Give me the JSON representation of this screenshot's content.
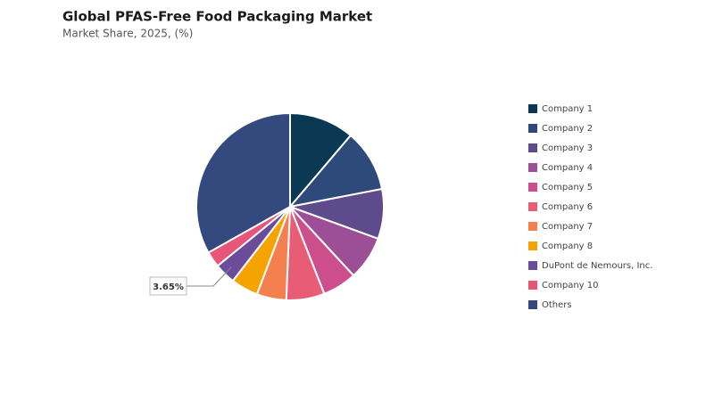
{
  "chart_data": {
    "type": "pie",
    "title": "Global PFAS-Free Food Packaging Market",
    "subtitle": "Market Share, 2025, (%)",
    "categories": [
      "Company 1",
      "Company 2",
      "Company 3",
      "Company 4",
      "Company 5",
      "Company 6",
      "Company 7",
      "Company 8",
      "DuPont de Nemours, Inc.",
      "Company 10",
      "Others"
    ],
    "values": [
      11.2,
      10.75,
      8.6,
      7.6,
      5.9,
      6.6,
      5.1,
      4.7,
      3.65,
      2.75,
      33.15
    ],
    "value_labels": [
      null,
      null,
      null,
      null,
      null,
      null,
      null,
      null,
      "3.65%",
      null,
      null
    ],
    "colors": [
      "#0b3954",
      "#2e4a7a",
      "#5e4b8b",
      "#9c4f96",
      "#cc4f8b",
      "#e85d75",
      "#f47f4f",
      "#f5a300",
      "#6b4c9a",
      "#e8557a",
      "#344a7e"
    ],
    "legend": "right"
  }
}
